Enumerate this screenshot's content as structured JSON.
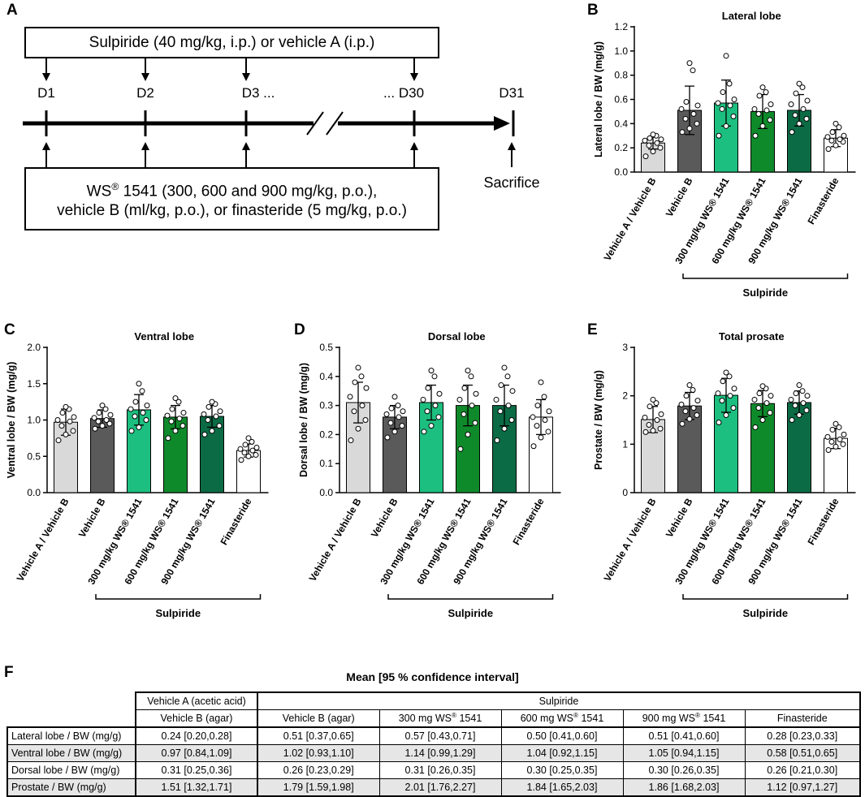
{
  "figure": {
    "panel_labels": [
      "A",
      "B",
      "C",
      "D",
      "E",
      "F"
    ]
  },
  "schematic": {
    "top_box_text": "Sulpiride (40 mg/kg, i.p.) or vehicle A (i.p.)",
    "bottom_box_line1_prefix": "WS",
    "bottom_box_line1_suffix": " 1541 (300, 600 and 900 mg/kg, p.o.),",
    "registered_mark": "®",
    "bottom_box_line2": "vehicle B (ml/kg, p.o.), or finasteride (5 mg/kg, p.o.)",
    "days": [
      "D1",
      "D2",
      "D3 ...",
      "... D30",
      "D31"
    ],
    "sacrifice_label": "Sacrifice"
  },
  "chart_data": [
    {
      "panel": "B",
      "type": "bar",
      "title": "Lateral lobe",
      "ylabel": "Lateral lobe / BW (mg/g)",
      "ylim": [
        0,
        1.2
      ],
      "yticks": [
        0,
        0.2,
        0.4,
        0.6,
        0.8,
        1.0,
        1.2
      ],
      "ytick_labels": [
        "0.0",
        "0.2",
        "0.4",
        "0.6",
        "0.8",
        "1.0",
        "1.2"
      ],
      "categories": [
        "Vehicle A / Vehicle B",
        "Vehicle B",
        "300 mg/kg WS® 1541",
        "600 mg/kg WS® 1541",
        "900 mg/kg WS® 1541",
        "Finasteride"
      ],
      "bracket_label": "Sulpiride",
      "values": [
        0.24,
        0.51,
        0.57,
        0.5,
        0.51,
        0.28
      ],
      "sd": [
        0.05,
        0.2,
        0.19,
        0.14,
        0.13,
        0.07
      ],
      "colors": [
        "#d9d9d9",
        "#5a5a5a",
        "#1cbf7f",
        "#0f8a2b",
        "#0b6b45",
        "#ffffff"
      ],
      "points": [
        [
          0.13,
          0.17,
          0.2,
          0.22,
          0.24,
          0.26,
          0.27,
          0.28,
          0.3,
          0.31
        ],
        [
          0.33,
          0.36,
          0.4,
          0.44,
          0.48,
          0.52,
          0.55,
          0.58,
          0.84,
          0.9
        ],
        [
          0.3,
          0.38,
          0.46,
          0.52,
          0.55,
          0.57,
          0.6,
          0.66,
          0.73,
          0.96
        ],
        [
          0.3,
          0.38,
          0.43,
          0.48,
          0.51,
          0.52,
          0.56,
          0.63,
          0.66,
          0.7
        ],
        [
          0.33,
          0.4,
          0.44,
          0.47,
          0.52,
          0.56,
          0.59,
          0.65,
          0.7,
          0.73
        ],
        [
          0.19,
          0.22,
          0.25,
          0.26,
          0.27,
          0.29,
          0.3,
          0.33,
          0.37,
          0.4
        ]
      ]
    },
    {
      "panel": "C",
      "type": "bar",
      "title": "Ventral lobe",
      "ylabel": "Ventral lobe / BW (mg/g)",
      "ylim": [
        0,
        2.0
      ],
      "yticks": [
        0,
        0.5,
        1.0,
        1.5,
        2.0
      ],
      "ytick_labels": [
        "0.0",
        "0.5",
        "1.0",
        "1.5",
        "2.0"
      ],
      "categories": [
        "Vehicle A / Vehicle B",
        "Vehicle B",
        "300 mg/kg WS® 1541",
        "600 mg/kg WS® 1541",
        "900 mg/kg WS® 1541",
        "Finasteride"
      ],
      "bracket_label": "Sulpiride",
      "values": [
        0.97,
        1.02,
        1.14,
        1.04,
        1.05,
        0.58
      ],
      "sd": [
        0.18,
        0.12,
        0.21,
        0.16,
        0.15,
        0.09
      ],
      "colors": [
        "#d9d9d9",
        "#5a5a5a",
        "#1cbf7f",
        "#0f8a2b",
        "#0b6b45",
        "#ffffff"
      ],
      "points": [
        [
          0.72,
          0.8,
          0.85,
          0.92,
          0.98,
          1.0,
          1.04,
          1.1,
          1.15,
          1.18
        ],
        [
          0.88,
          0.92,
          0.95,
          0.98,
          1.0,
          1.03,
          1.07,
          1.1,
          1.15,
          1.2
        ],
        [
          0.85,
          0.9,
          1.0,
          1.05,
          1.1,
          1.15,
          1.2,
          1.25,
          1.4,
          1.5
        ],
        [
          0.75,
          0.85,
          0.92,
          0.98,
          1.02,
          1.06,
          1.1,
          1.15,
          1.25,
          1.3
        ],
        [
          0.8,
          0.85,
          0.92,
          1.0,
          1.05,
          1.08,
          1.12,
          1.18,
          1.22,
          1.25
        ],
        [
          0.45,
          0.5,
          0.52,
          0.55,
          0.58,
          0.6,
          0.62,
          0.66,
          0.7,
          0.75
        ]
      ]
    },
    {
      "panel": "D",
      "type": "bar",
      "title": "Dorsal lobe",
      "ylabel": "Dorsal lobe / BW (mg/g)",
      "ylim": [
        0,
        0.5
      ],
      "yticks": [
        0,
        0.1,
        0.2,
        0.3,
        0.4,
        0.5
      ],
      "ytick_labels": [
        "0.0",
        "0.1",
        "0.2",
        "0.3",
        "0.4",
        "0.5"
      ],
      "categories": [
        "Vehicle A / Vehicle B",
        "Vehicle B",
        "300 mg/kg WS® 1541",
        "600 mg/kg WS® 1541",
        "900 mg/kg WS® 1541",
        "Finasteride"
      ],
      "bracket_label": "Sulpiride",
      "values": [
        0.31,
        0.26,
        0.31,
        0.3,
        0.3,
        0.26
      ],
      "sd": [
        0.07,
        0.04,
        0.06,
        0.07,
        0.07,
        0.06
      ],
      "colors": [
        "#d9d9d9",
        "#5a5a5a",
        "#1cbf7f",
        "#0f8a2b",
        "#0b6b45",
        "#ffffff"
      ],
      "points": [
        [
          0.18,
          0.22,
          0.25,
          0.28,
          0.3,
          0.33,
          0.36,
          0.38,
          0.4,
          0.43
        ],
        [
          0.19,
          0.21,
          0.23,
          0.24,
          0.26,
          0.27,
          0.28,
          0.29,
          0.3,
          0.33
        ],
        [
          0.21,
          0.23,
          0.26,
          0.28,
          0.3,
          0.32,
          0.34,
          0.36,
          0.4,
          0.42
        ],
        [
          0.15,
          0.2,
          0.24,
          0.27,
          0.3,
          0.32,
          0.34,
          0.36,
          0.4,
          0.42
        ],
        [
          0.18,
          0.22,
          0.25,
          0.28,
          0.3,
          0.32,
          0.35,
          0.37,
          0.4,
          0.43
        ],
        [
          0.16,
          0.19,
          0.21,
          0.23,
          0.25,
          0.26,
          0.28,
          0.3,
          0.33,
          0.38
        ]
      ]
    },
    {
      "panel": "E",
      "type": "bar",
      "title": "Total prosate",
      "ylabel": "Prostate / BW (mg/g)",
      "ylim": [
        0,
        3
      ],
      "yticks": [
        0,
        1,
        2,
        3
      ],
      "ytick_labels": [
        "0",
        "1",
        "2",
        "3"
      ],
      "categories": [
        "Vehicle A / Vehicle B",
        "Vehicle B",
        "300 mg/kg WS® 1541",
        "600 mg/kg WS® 1541",
        "900 mg/kg WS® 1541",
        "Finasteride"
      ],
      "bracket_label": "Sulpiride",
      "values": [
        1.51,
        1.79,
        2.01,
        1.84,
        1.86,
        1.12
      ],
      "sd": [
        0.27,
        0.28,
        0.35,
        0.27,
        0.24,
        0.21
      ],
      "colors": [
        "#d9d9d9",
        "#5a5a5a",
        "#1cbf7f",
        "#0f8a2b",
        "#0b6b45",
        "#ffffff"
      ],
      "points": [
        [
          1.25,
          1.28,
          1.32,
          1.4,
          1.5,
          1.55,
          1.62,
          1.78,
          1.85,
          1.92
        ],
        [
          1.42,
          1.52,
          1.6,
          1.68,
          1.75,
          1.82,
          1.9,
          2.0,
          2.12,
          2.22
        ],
        [
          1.45,
          1.6,
          1.75,
          1.9,
          2.0,
          2.05,
          2.15,
          2.3,
          2.4,
          2.48
        ],
        [
          1.35,
          1.5,
          1.65,
          1.75,
          1.85,
          1.92,
          2.0,
          2.05,
          2.15,
          2.2
        ],
        [
          1.5,
          1.6,
          1.7,
          1.8,
          1.85,
          1.92,
          2.0,
          2.05,
          2.1,
          2.22
        ],
        [
          0.88,
          0.95,
          1.0,
          1.05,
          1.1,
          1.15,
          1.2,
          1.3,
          1.35,
          1.42
        ]
      ]
    }
  ],
  "table": {
    "title": "Mean [95 % confidence interval]",
    "group_headers": {
      "vehicle_a": "Vehicle A (acetic acid)",
      "sulpiride": "Sulpiride"
    },
    "column_headers": {
      "c1": "Vehicle B (agar)",
      "c2": "Vehicle B (agar)",
      "c3_prefix": "300 mg WS",
      "c4_prefix": "600 mg WS",
      "c5_prefix": "900 mg WS",
      "ws_suffix": " 1541",
      "registered_mark": "®",
      "c6": "Finasteride"
    },
    "rows": [
      {
        "label": "Lateral lobe / BW (mg/g)",
        "cells": [
          "0.24 [0.20,0.28]",
          "0.51 [0.37,0.65]",
          "0.57 [0.43,0.71]",
          "0.50 [0.41,0.60]",
          "0.51 [0.41,0.60]",
          "0.28 [0.23,0.33]"
        ]
      },
      {
        "label": "Ventral lobe / BW (mg/g)",
        "cells": [
          "0.97 [0.84,1.09]",
          "1.02 [0.93,1.10]",
          "1.14 [0.99,1.29]",
          "1.04 [0.92,1.15]",
          "1.05 [0.94,1.15]",
          "0.58 [0.51,0.65]"
        ]
      },
      {
        "label": "Dorsal lobe / BW (mg/g)",
        "cells": [
          "0.31 [0.25,0.36]",
          "0.26 [0.23,0.29]",
          "0.31 [0.26,0.35]",
          "0.30 [0.25,0.35]",
          "0.30 [0.26,0.35]",
          "0.26 [0.21,0.30]"
        ]
      },
      {
        "label": "Prostate / BW (mg/g)",
        "cells": [
          "1.51 [1.32,1.71]",
          "1.79 [1.59,1.98]",
          "2.01 [1.76,2.27]",
          "1.84 [1.65,2.03]",
          "1.86 [1.68,2.03]",
          "1.12 [0.97,1.27]"
        ]
      }
    ]
  }
}
